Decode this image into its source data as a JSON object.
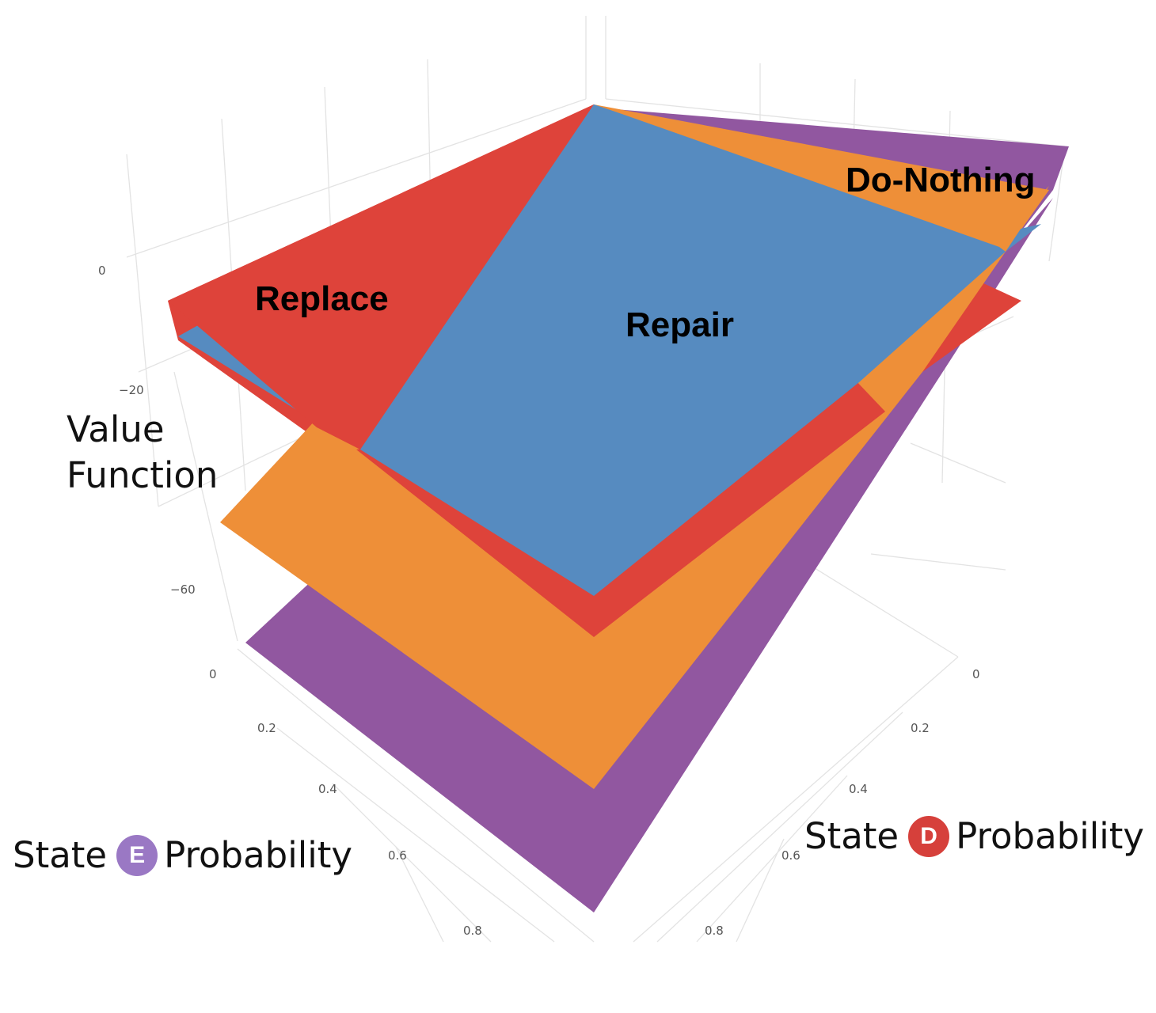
{
  "chart_data": {
    "type": "surface",
    "zlabel_lines": [
      "Value",
      "Function"
    ],
    "z_ticks": [
      "0",
      "−20",
      "−60"
    ],
    "e_axis": {
      "word_before": "State",
      "badge": "E",
      "word_after": "Probability",
      "ticks": [
        "0",
        "0.2",
        "0.4",
        "0.6",
        "0.8"
      ]
    },
    "d_axis": {
      "word_before": "State",
      "badge": "D",
      "word_after": "Probability",
      "ticks": [
        "0",
        "0.2",
        "0.4",
        "0.6",
        "0.8"
      ]
    },
    "series": [
      {
        "name": "Do-Nothing",
        "color": "#9157a0"
      },
      {
        "name": "Replace",
        "color": "#de433a"
      },
      {
        "name": "Repair",
        "color": "#568bc0"
      },
      {
        "color": "#ee8f38"
      }
    ],
    "colors": {
      "e_badge": "#9a78c4",
      "d_badge": "#d6403b",
      "grid": "#e4e4e4"
    }
  }
}
